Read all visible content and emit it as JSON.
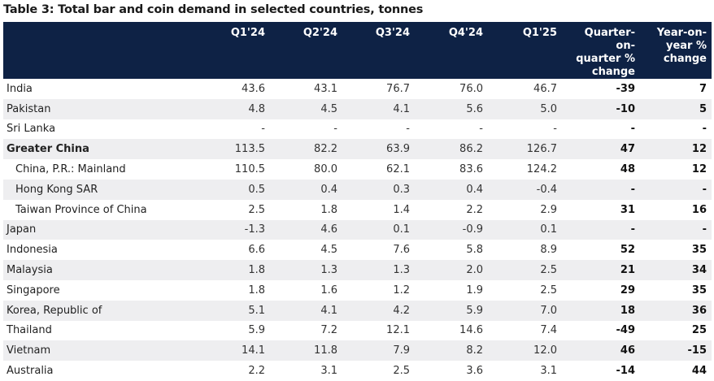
{
  "title": "Table 3: Total bar and coin demand in selected countries, tonnes",
  "columns": [
    "Q1'24",
    "Q2'24",
    "Q3'24",
    "Q4'24",
    "Q1'25",
    "Quarter-on-quarter % change",
    "Year-on-year % change"
  ],
  "header": {
    "c0": "Q1'24",
    "c1": "Q2'24",
    "c2": "Q3'24",
    "c3": "Q4'24",
    "c4": "Q1'25",
    "c5_l1": "Quarter-on-",
    "c5_l2": "quarter %",
    "c5_l3": "change",
    "c6_l1": "Year-on-",
    "c6_l2": "year %",
    "c6_l3": "change"
  },
  "rows": [
    {
      "label": "India",
      "values": [
        "43.6",
        "43.1",
        "76.7",
        "76.0",
        "46.7",
        "-39",
        "7"
      ]
    },
    {
      "label": "Pakistan",
      "values": [
        "4.8",
        "4.5",
        "4.1",
        "5.6",
        "5.0",
        "-10",
        "5"
      ]
    },
    {
      "label": "Sri Lanka",
      "values": [
        "-",
        "-",
        "-",
        "-",
        "-",
        "-",
        "-"
      ]
    },
    {
      "label": "Greater China",
      "values": [
        "113.5",
        "82.2",
        "63.9",
        "86.2",
        "126.7",
        "47",
        "12"
      ]
    },
    {
      "label": "China, P.R.: Mainland",
      "values": [
        "110.5",
        "80.0",
        "62.1",
        "83.6",
        "124.2",
        "48",
        "12"
      ]
    },
    {
      "label": "Hong Kong SAR",
      "values": [
        "0.5",
        "0.4",
        "0.3",
        "0.4",
        "-0.4",
        "-",
        "-"
      ]
    },
    {
      "label": "Taiwan Province of China",
      "values": [
        "2.5",
        "1.8",
        "1.4",
        "2.2",
        "2.9",
        "31",
        "16"
      ]
    },
    {
      "label": "Japan",
      "values": [
        "-1.3",
        "4.6",
        "0.1",
        "-0.9",
        "0.1",
        "-",
        "-"
      ]
    },
    {
      "label": "Indonesia",
      "values": [
        "6.6",
        "4.5",
        "7.6",
        "5.8",
        "8.9",
        "52",
        "35"
      ]
    },
    {
      "label": "Malaysia",
      "values": [
        "1.8",
        "1.3",
        "1.3",
        "2.0",
        "2.5",
        "21",
        "34"
      ]
    },
    {
      "label": "Singapore",
      "values": [
        "1.8",
        "1.6",
        "1.2",
        "1.9",
        "2.5",
        "29",
        "35"
      ]
    },
    {
      "label": "Korea, Republic of",
      "values": [
        "5.1",
        "4.1",
        "4.2",
        "5.9",
        "7.0",
        "18",
        "36"
      ]
    },
    {
      "label": "Thailand",
      "values": [
        "5.9",
        "7.2",
        "12.1",
        "14.6",
        "7.4",
        "-49",
        "25"
      ]
    },
    {
      "label": "Vietnam",
      "values": [
        "14.1",
        "11.8",
        "7.9",
        "8.2",
        "12.0",
        "46",
        "-15"
      ]
    },
    {
      "label": "Australia",
      "values": [
        "2.2",
        "3.1",
        "2.5",
        "3.6",
        "3.1",
        "-14",
        "44"
      ]
    }
  ],
  "colors": {
    "header_bg": "#0e2245",
    "row_shade": "#eeeef0"
  }
}
